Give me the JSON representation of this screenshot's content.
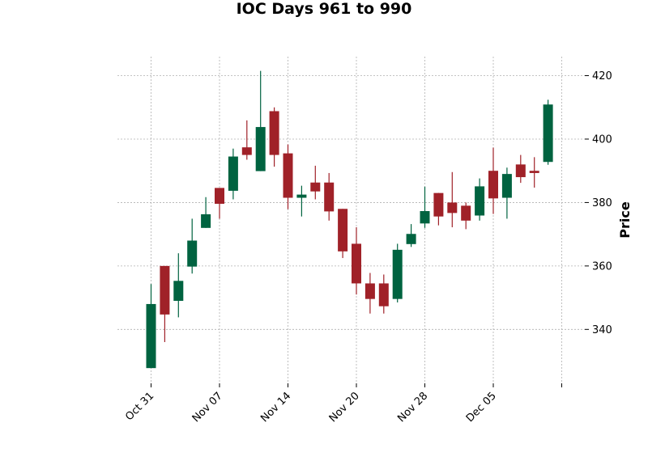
{
  "chart_data": {
    "type": "candlestick",
    "title": "IOC Days 961 to 990",
    "xlabel": "",
    "ylabel": "Price",
    "ylim": [
      323,
      426
    ],
    "yticks": [
      340,
      360,
      380,
      400,
      420
    ],
    "grid": true,
    "colors": {
      "up": "#006340",
      "down": "#a02128"
    },
    "x_tick_labels": [
      {
        "index": 0,
        "label": "Oct 31"
      },
      {
        "index": 5,
        "label": "Nov 07"
      },
      {
        "index": 10,
        "label": "Nov 14"
      },
      {
        "index": 15,
        "label": "Nov 20"
      },
      {
        "index": 20,
        "label": "Nov 28"
      },
      {
        "index": 25,
        "label": "Dec 05"
      },
      {
        "index": 30,
        "label": ""
      }
    ],
    "candles": [
      {
        "open": 327.8,
        "high": 354.3,
        "low": 327.8,
        "close": 348.0
      },
      {
        "open": 360.0,
        "high": 360.0,
        "low": 336.0,
        "close": 344.7
      },
      {
        "open": 349.0,
        "high": 364.0,
        "low": 343.8,
        "close": 355.3
      },
      {
        "open": 359.8,
        "high": 374.9,
        "low": 357.6,
        "close": 368.0
      },
      {
        "open": 372.0,
        "high": 381.7,
        "low": 372.0,
        "close": 376.3
      },
      {
        "open": 384.6,
        "high": 384.6,
        "low": 374.9,
        "close": 379.6
      },
      {
        "open": 383.7,
        "high": 397.0,
        "low": 381.0,
        "close": 394.5
      },
      {
        "open": 397.4,
        "high": 405.9,
        "low": 393.5,
        "close": 395.0
      },
      {
        "open": 389.9,
        "high": 421.5,
        "low": 389.9,
        "close": 403.8
      },
      {
        "open": 408.8,
        "high": 410.0,
        "low": 391.3,
        "close": 395.0
      },
      {
        "open": 395.5,
        "high": 398.3,
        "low": 377.9,
        "close": 381.5
      },
      {
        "open": 381.5,
        "high": 385.3,
        "low": 375.6,
        "close": 382.5
      },
      {
        "open": 386.3,
        "high": 391.6,
        "low": 381.0,
        "close": 383.5
      },
      {
        "open": 386.3,
        "high": 389.3,
        "low": 374.3,
        "close": 377.2
      },
      {
        "open": 378.0,
        "high": 378.0,
        "low": 362.5,
        "close": 364.6
      },
      {
        "open": 367.0,
        "high": 372.2,
        "low": 351.0,
        "close": 354.5
      },
      {
        "open": 354.5,
        "high": 357.8,
        "low": 345.0,
        "close": 349.6
      },
      {
        "open": 354.5,
        "high": 357.3,
        "low": 345.0,
        "close": 347.3
      },
      {
        "open": 349.6,
        "high": 367.0,
        "low": 348.5,
        "close": 365.1
      },
      {
        "open": 366.9,
        "high": 373.2,
        "low": 366.0,
        "close": 370.1
      },
      {
        "open": 373.4,
        "high": 385.0,
        "low": 372.0,
        "close": 377.3
      },
      {
        "open": 383.0,
        "high": 383.0,
        "low": 372.8,
        "close": 375.6
      },
      {
        "open": 380.0,
        "high": 389.6,
        "low": 372.2,
        "close": 376.7
      },
      {
        "open": 379.0,
        "high": 380.0,
        "low": 371.6,
        "close": 374.3
      },
      {
        "open": 375.9,
        "high": 387.6,
        "low": 374.3,
        "close": 385.1
      },
      {
        "open": 390.0,
        "high": 397.3,
        "low": 376.4,
        "close": 381.3
      },
      {
        "open": 381.5,
        "high": 391.0,
        "low": 374.9,
        "close": 389.0
      },
      {
        "open": 392.0,
        "high": 395.0,
        "low": 386.2,
        "close": 388.0
      },
      {
        "open": 390.0,
        "high": 394.3,
        "low": 384.7,
        "close": 389.3
      },
      {
        "open": 392.8,
        "high": 412.4,
        "low": 391.9,
        "close": 410.9
      }
    ]
  }
}
